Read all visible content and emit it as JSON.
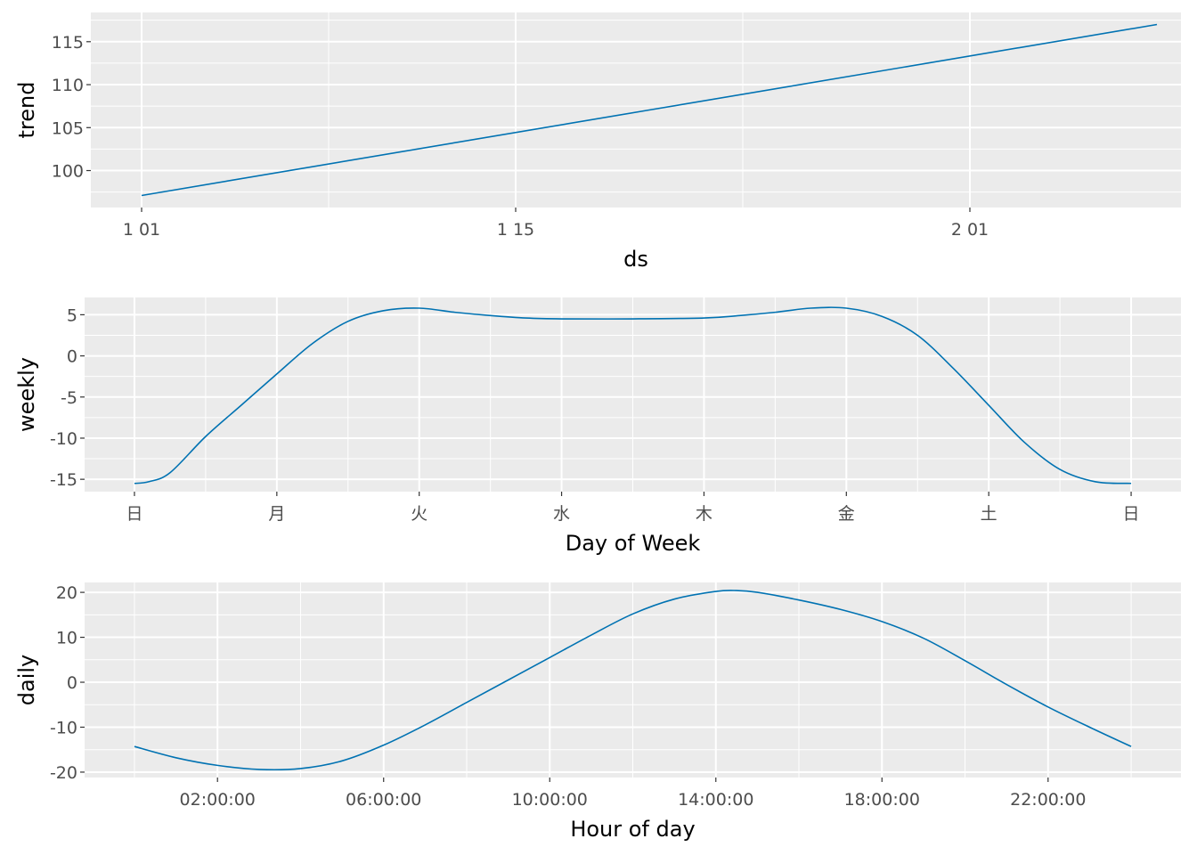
{
  "chart_data": [
    {
      "type": "line",
      "title": "",
      "xlabel": "ds",
      "ylabel": "trend",
      "x_ticks": [
        {
          "x": 0,
          "label": "1 01"
        },
        {
          "x": 14,
          "label": "1 15"
        },
        {
          "x": 31,
          "label": "2 01"
        }
      ],
      "x_minor_ticks": [
        7,
        22.5
      ],
      "xlim": [
        -1.9,
        38.9
      ],
      "y_ticks": [
        100,
        105,
        110,
        115
      ],
      "ylim": [
        95.7,
        118.4
      ],
      "grid": true,
      "series": [
        {
          "color": "#0072B2",
          "x": [
            0,
            38
          ],
          "y": [
            97.1,
            117.0
          ]
        }
      ]
    },
    {
      "type": "line",
      "title": "",
      "xlabel": "Day of Week",
      "ylabel": "weekly",
      "x_ticks": [
        {
          "x": 0,
          "label": "日"
        },
        {
          "x": 1,
          "label": "月"
        },
        {
          "x": 2,
          "label": "火"
        },
        {
          "x": 3,
          "label": "水"
        },
        {
          "x": 4,
          "label": "木"
        },
        {
          "x": 5,
          "label": "金"
        },
        {
          "x": 6,
          "label": "土"
        },
        {
          "x": 7,
          "label": "日"
        }
      ],
      "x_minor_ticks": [
        0.5,
        1.5,
        2.5,
        3.5,
        4.5,
        5.5,
        6.5
      ],
      "xlim": [
        -0.35,
        7.35
      ],
      "y_ticks": [
        -15,
        -10,
        -5,
        0,
        5
      ],
      "ylim": [
        -16.5,
        7.1
      ],
      "grid": true,
      "series": [
        {
          "color": "#0072B2",
          "x": [
            0,
            0.1,
            0.25,
            0.5,
            0.75,
            1.0,
            1.25,
            1.5,
            1.75,
            2.0,
            2.25,
            2.5,
            2.75,
            3.0,
            3.5,
            4.0,
            4.25,
            4.5,
            4.75,
            5.0,
            5.25,
            5.5,
            5.75,
            6.0,
            6.25,
            6.5,
            6.75,
            7.0
          ],
          "y": [
            -15.5,
            -15.3,
            -14.2,
            -9.8,
            -6.0,
            -2.2,
            1.5,
            4.2,
            5.5,
            5.8,
            5.3,
            4.9,
            4.6,
            4.5,
            4.5,
            4.6,
            4.9,
            5.3,
            5.8,
            5.8,
            4.8,
            2.5,
            -1.5,
            -6.0,
            -10.5,
            -13.8,
            -15.3,
            -15.5
          ]
        }
      ]
    },
    {
      "type": "line",
      "title": "",
      "xlabel": "Hour of day",
      "ylabel": "daily",
      "x_ticks": [
        {
          "x": 2,
          "label": "02:00:00"
        },
        {
          "x": 6,
          "label": "06:00:00"
        },
        {
          "x": 10,
          "label": "10:00:00"
        },
        {
          "x": 14,
          "label": "14:00:00"
        },
        {
          "x": 18,
          "label": "18:00:00"
        },
        {
          "x": 22,
          "label": "22:00:00"
        }
      ],
      "x_minor_ticks": [
        0,
        4,
        8,
        12,
        16,
        20,
        24
      ],
      "xlim": [
        -1.2,
        25.2
      ],
      "y_ticks": [
        -20,
        -10,
        0,
        10,
        20
      ],
      "ylim": [
        -21.2,
        22.2
      ],
      "grid": true,
      "series": [
        {
          "color": "#0072B2",
          "x": [
            0,
            1,
            2,
            3,
            4,
            5,
            6,
            7,
            8,
            9,
            10,
            11,
            12,
            13,
            14,
            14.5,
            15,
            16,
            17,
            18,
            19,
            20,
            21,
            22,
            23,
            24
          ],
          "y": [
            -14.3,
            -16.8,
            -18.5,
            -19.4,
            -19.2,
            -17.5,
            -14.0,
            -9.5,
            -4.5,
            0.5,
            5.5,
            10.5,
            15.2,
            18.5,
            20.2,
            20.4,
            20.0,
            18.3,
            16.2,
            13.5,
            9.8,
            4.8,
            -0.5,
            -5.5,
            -10.0,
            -14.3
          ]
        }
      ]
    }
  ]
}
